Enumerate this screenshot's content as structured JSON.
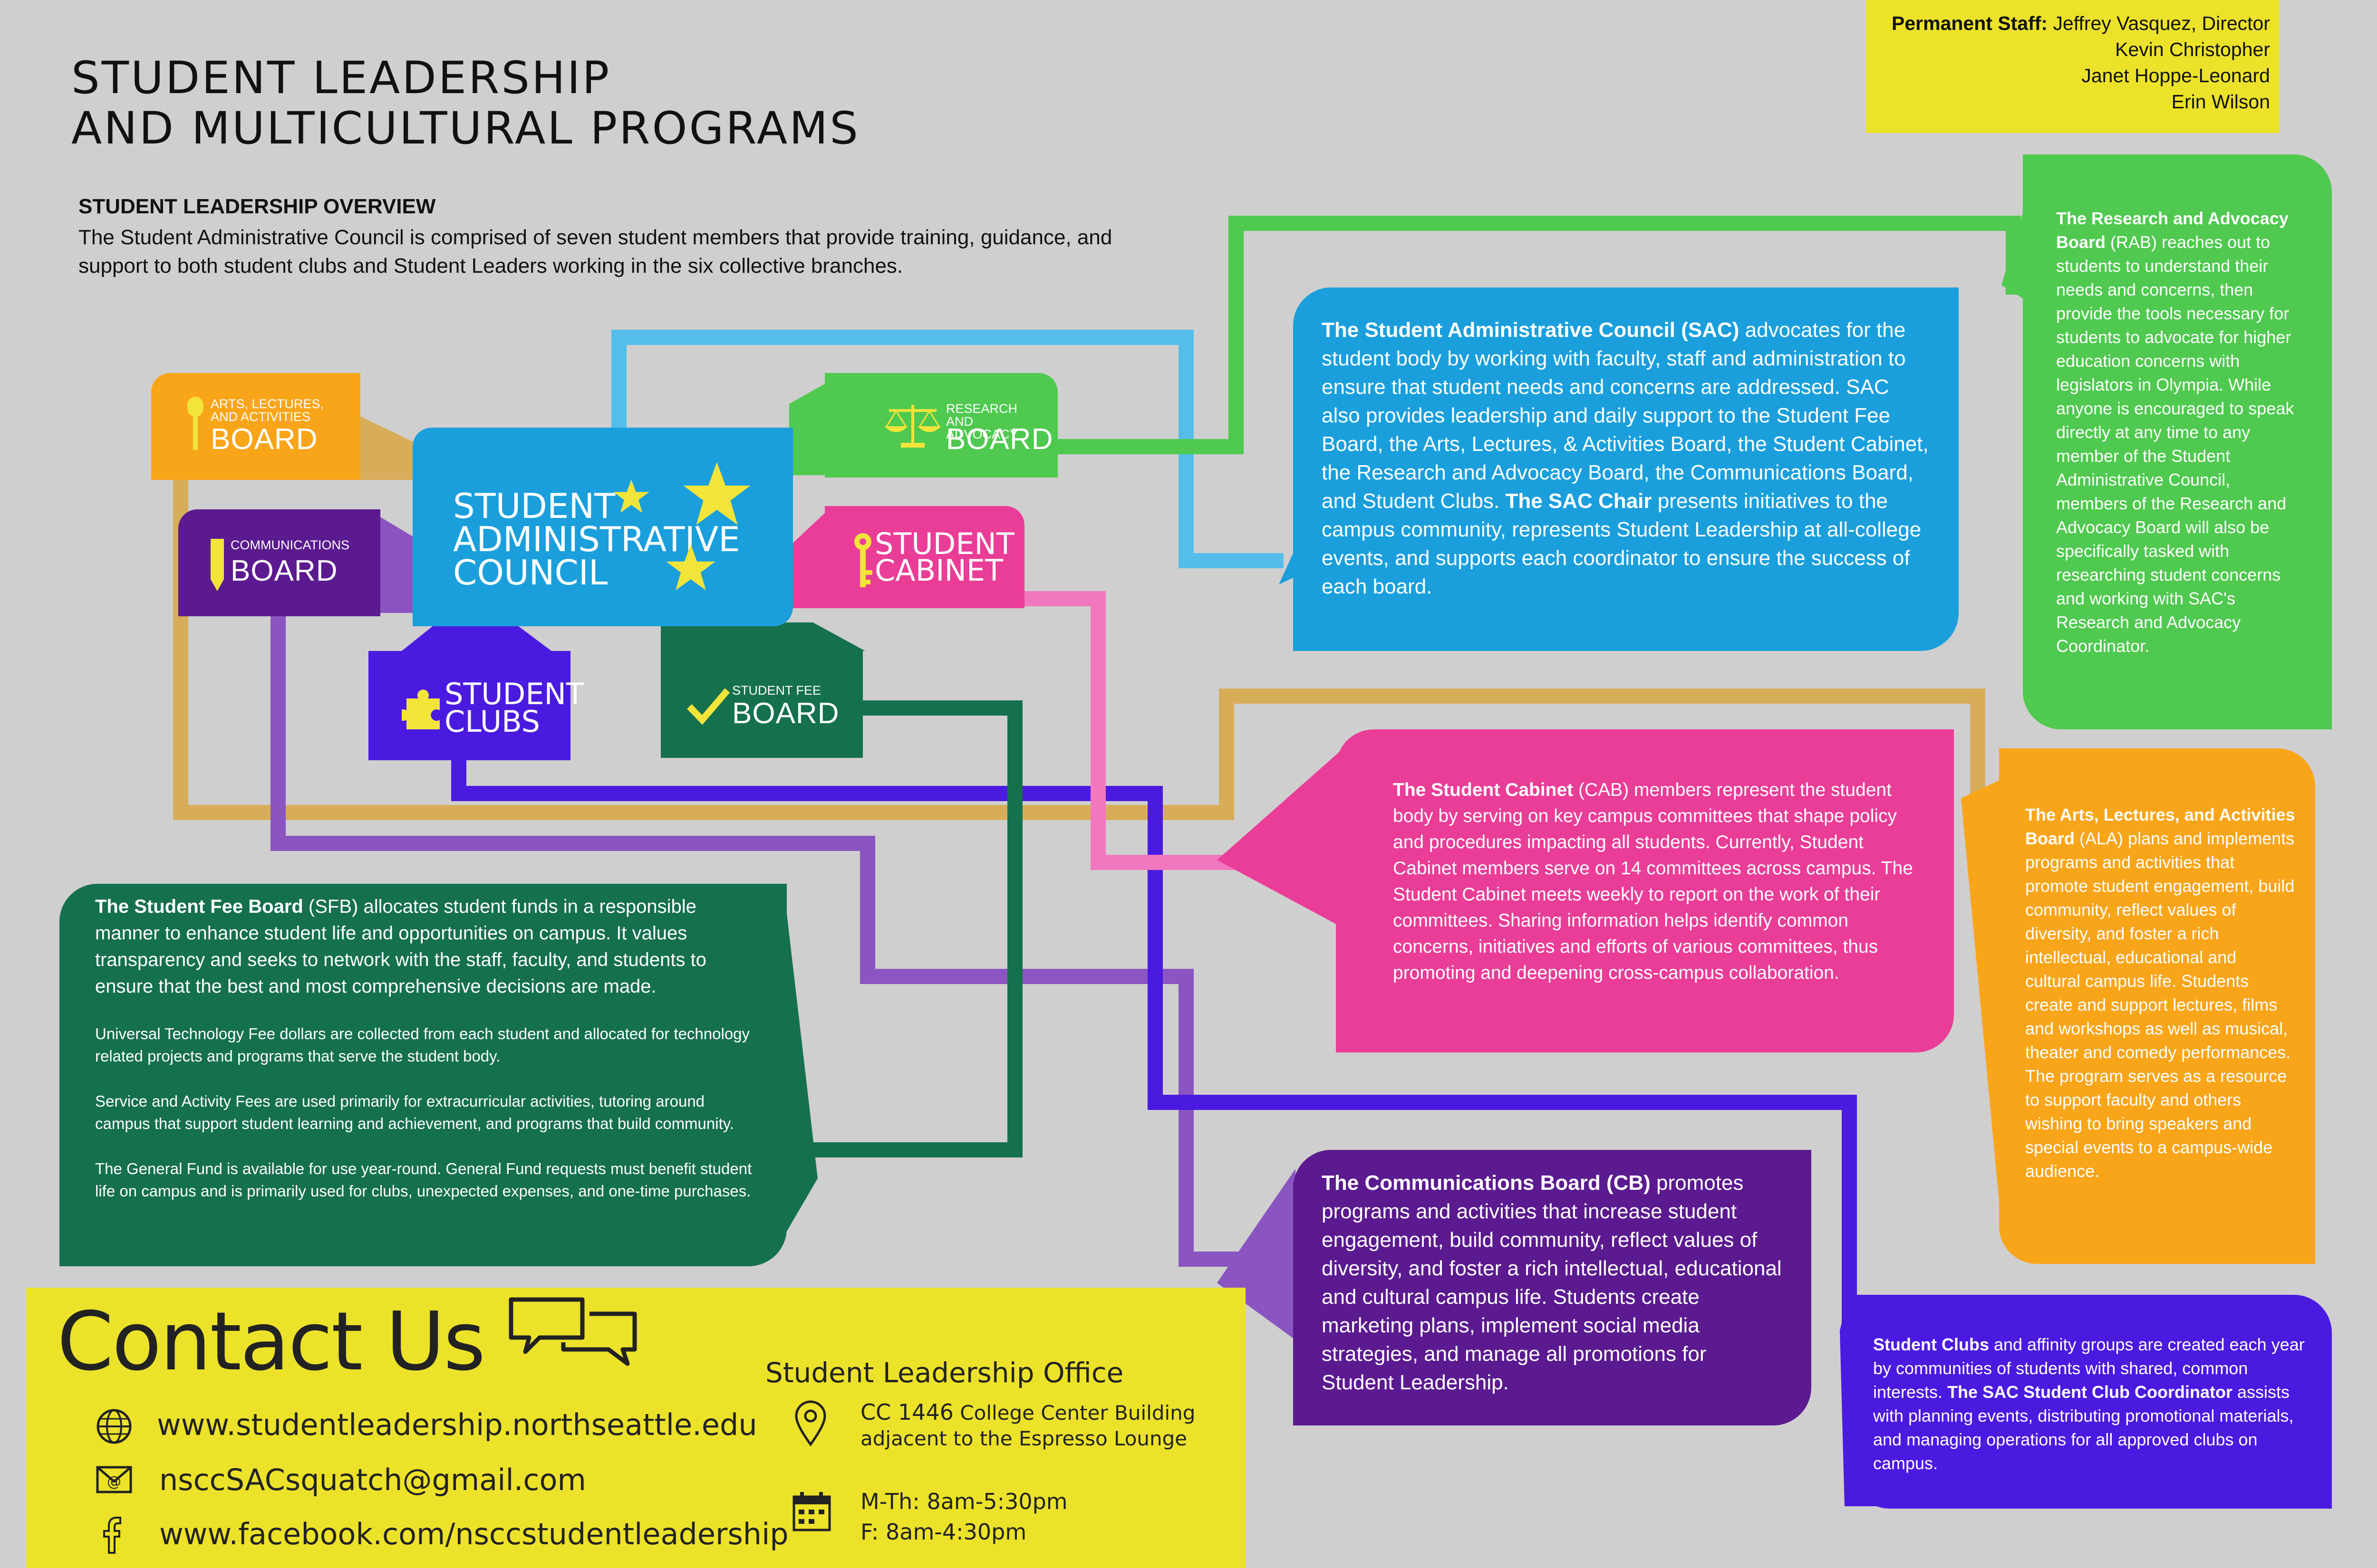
{
  "header": {
    "title_line1": "STUDENT LEADERSHIP",
    "title_line2": "AND MULTICULTURAL PROGRAMS"
  },
  "overview": {
    "heading": "STUDENT LEADERSHIP OVERVIEW",
    "text": "The Student Administrative Council is comprised of seven student members that provide training, guidance, and support to both student clubs and Student Leaders working in the six collective branches."
  },
  "staff": {
    "label": "Permanent Staff:",
    "members": [
      "Jeffrey Vasquez, Director",
      "Kevin Christopher",
      "Janet Hoppe-Leonard",
      "Erin Wilson"
    ]
  },
  "nodes": {
    "ala": {
      "small": "ARTS, LECTURES, AND ACTIVITIES",
      "big": "BOARD"
    },
    "comm": {
      "small": "COMMUNICATIONS",
      "big": "BOARD"
    },
    "sac": {
      "line1": "STUDENT",
      "line2": "ADMINISTRATIVE",
      "line3": "COUNCIL"
    },
    "rab": {
      "small": "RESEARCH AND ADVOCACY",
      "big": "BOARD"
    },
    "cabinet": {
      "line1": "STUDENT",
      "line2": "CABINET"
    },
    "clubs": {
      "line1": "STUDENT",
      "line2": "CLUBS"
    },
    "sfb": {
      "small": "STUDENT FEE",
      "big": "BOARD"
    }
  },
  "descriptions": {
    "sac": {
      "bold1": "The Student Administrative Council (SAC)",
      "text1": " advocates for the student body by working with faculty, staff and administration to ensure that student needs and concerns are addressed. SAC also provides leadership and daily support to the Student Fee Board, the Arts, Lectures, & Activities Board, the Student Cabinet, the Research and Advocacy Board, the Communications Board, and Student Clubs. ",
      "bold2": "The SAC Chair",
      "text2": " presents initiatives to the campus community, represents Student Leadership at all-college events, and supports each coordinator to ensure the success of each board."
    },
    "rab": {
      "bold": "The Research and Advocacy Board",
      "text": " (RAB) reaches out to students to understand their needs and concerns, then provide the tools necessary for students to advocate for higher education concerns with legislators in Olympia. While anyone is encouraged to speak directly at any time to any member of the Student Administrative Council, members of the Research and Advocacy Board will also be specifically tasked with researching student concerns and working with SAC's Research and Advocacy Coordinator."
    },
    "cabinet": {
      "bold": "The Student Cabinet",
      "text": " (CAB) members represent the student body by serving on key campus committees that shape policy and procedures impacting all students. Currently, Student Cabinet members serve on 14 committees across campus. The Student Cabinet meets weekly to report on the work of their committees. Sharing information helps identify common concerns, initiatives and efforts of various committees, thus promoting and deepening cross-campus collaboration."
    },
    "ala": {
      "bold": "The Arts, Lectures, and Activities Board",
      "text": " (ALA) plans and implements programs and activities that promote student engagement, build community, reflect values of diversity, and foster a rich intellectual, educational and cultural campus life. Students create and support lectures, films and workshops as well as musical, theater and comedy performances. The program serves as a resource to support faculty and others wishing to bring speakers and special events to a campus-wide audience."
    },
    "sfb": {
      "bold": "The Student Fee Board",
      "text": " (SFB) allocates student funds in a responsible manner to enhance student life and opportunities on campus. It values transparency and seeks to network with the staff, faculty, and students to ensure that the best and most comprehensive decisions are made.",
      "p2": "Universal Technology Fee dollars are collected from each student and allocated for technology related projects and programs that serve the student body.",
      "p3": "Service and Activity Fees are used primarily for extracurricular activities, tutoring around campus that support student learning and achievement, and programs that build community.",
      "p4": "The General Fund is available for use year-round. General Fund requests must benefit student life on campus and is primarily used for clubs, unexpected expenses, and one-time purchases."
    },
    "comm": {
      "bold": "The Communications Board (CB)",
      "text": " promotes programs and activities that increase student engagement, build community, reflect values of diversity, and foster a rich intellectual, educational and cultural campus life. Students create marketing plans, implement social media strategies, and manage all promotions for Student Leadership."
    },
    "clubs": {
      "bold1": "Student Clubs",
      "text1": " and affinity groups are created each year by communities of students with shared, common interests. ",
      "bold2": "The SAC Student Club Coordinator",
      "text2": " assists with planning events, distributing promotional materials, and managing operations for all approved clubs on campus."
    }
  },
  "contact": {
    "title": "Contact Us",
    "website": "www.studentleadership.northseattle.edu",
    "email": "nsccSACsquatch@gmail.com",
    "facebook": "www.facebook.com/nsccstudentleadership",
    "office_heading": "Student Leadership Office",
    "room": "CC 1446",
    "building": "College Center Building",
    "location_note": "adjacent to the Espresso Lounge",
    "hours1": "M-Th: 8am-5:30pm",
    "hours2": "F: 8am-4:30pm"
  },
  "colors": {
    "sac": "#1a9fdc",
    "sac_light": "#55bde9",
    "rab": "#4fc94f",
    "cabinet": "#ea3d97",
    "ala": "#f9a51a",
    "comm": "#5b1a8f",
    "clubs": "#4b1ae0",
    "sfb": "#15704e",
    "yellow": "#ece22a",
    "star": "#f3e43a"
  }
}
